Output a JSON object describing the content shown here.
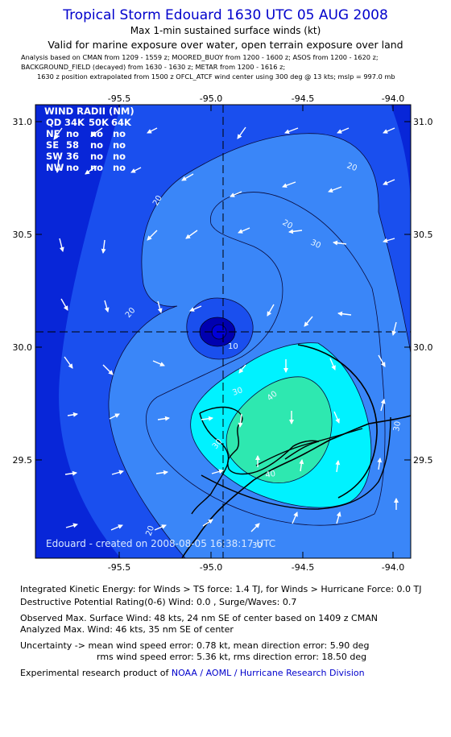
{
  "header": {
    "title": "Tropical Storm Edouard 1630 UTC 05 AUG 2008",
    "subtitle1": "Max 1-min sustained surface winds (kt)",
    "subtitle2": "Valid for marine exposure over water, open terrain exposure over land",
    "note1": "Analysis based on  CMAN from 1209 - 1559 z;  MOORED_BUOY from 1200 - 1600 z;  ASOS from 1200 - 1620 z;",
    "note2": "BACKGROUND_FIELD (decayed) from 1630 - 1630 z;  METAR from 1200 - 1616 z;",
    "note3": "1630 z position extrapolated from 1500 z OFCL_ATCF wind center using 300 deg @ 13 kts; mslp = 997.0 mb"
  },
  "map": {
    "lon_ticks": [
      "-95.5",
      "-95.0",
      "-94.5",
      "-94.0"
    ],
    "lat_ticks": [
      "31.0",
      "30.5",
      "30.0",
      "29.5"
    ],
    "wind_radii": {
      "header": "WIND RADII (NM)",
      "columns": [
        "QD",
        "34K",
        "50K",
        "64K"
      ],
      "rows": [
        [
          "NE",
          "no",
          "no",
          "no"
        ],
        [
          "SE",
          "58",
          "no",
          "no"
        ],
        [
          "SW",
          "36",
          "no",
          "no"
        ],
        [
          "NW",
          "no",
          "no",
          "no"
        ]
      ]
    },
    "contour_labels": [
      "20",
      "20",
      "20",
      "20",
      "30",
      "30",
      "30",
      "30",
      "40",
      "40",
      "10",
      "20",
      "30"
    ],
    "created_label": "Edouard - created on 2008-08-05 16:38:17 UTC",
    "colors": {
      "lt10": "#0826d8",
      "c10": "#1a4fee",
      "c20": "#3a86f8",
      "c30": "#00f2ff",
      "c40": "#2ee8b0",
      "center": "#0000b0"
    }
  },
  "footer": {
    "ike": "Integrated Kinetic Energy:  for Winds > TS force: 1.4 TJ,  for Winds > Hurricane Force: 0.0 TJ",
    "dpr": "Destructive Potential Rating(0-6)   Wind: 0.0 , Surge/Waves: 0.7",
    "obs": "Observed Max. Surface Wind: 48 kts, 24 nm SE of center based on 1409 z CMAN",
    "analyzed": "Analyzed Max. Wind: 46 kts, 35 nm SE of center",
    "unc1": "Uncertainty -> mean wind speed error: 0.78 kt,   mean direction error: 5.90 deg",
    "unc2": "rms wind speed error: 5.36 kt,   rms direction error: 18.50 deg",
    "credit_prefix": "Experimental research product of ",
    "credit_link": "NOAA / AOML / Hurricane Research Division"
  }
}
